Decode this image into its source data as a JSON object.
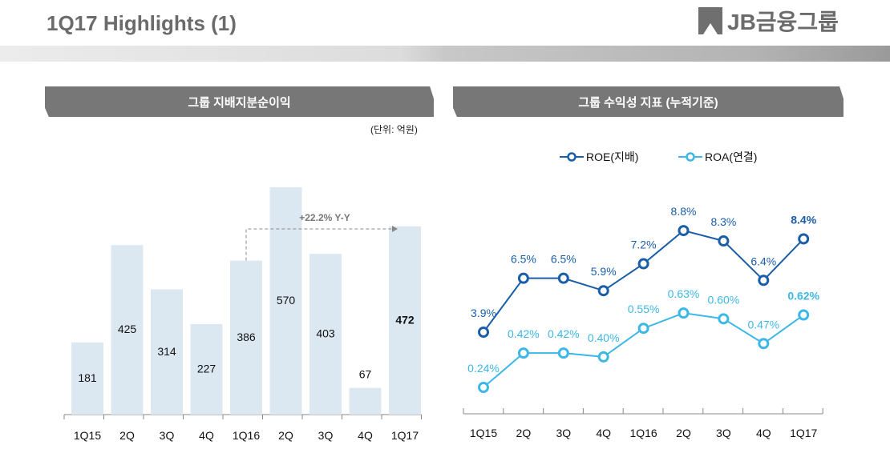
{
  "header": {
    "title": "1Q17 Highlights (1)",
    "logo_text": "JB금융그룹"
  },
  "left_panel": {
    "title": "그룹 지배지분순이익",
    "unit": "(단위: 억원)"
  },
  "right_panel": {
    "title": "그룹 수익성 지표 (누적기준)"
  },
  "chart_data": [
    {
      "type": "bar",
      "categories": [
        "1Q15",
        "2Q",
        "3Q",
        "4Q",
        "1Q16",
        "2Q",
        "3Q",
        "4Q",
        "1Q17"
      ],
      "values": [
        181,
        425,
        314,
        227,
        386,
        570,
        403,
        67,
        472
      ],
      "value_labels": [
        "181",
        "425",
        "314",
        "227",
        "386",
        "570",
        "403",
        "67",
        "472"
      ],
      "annotation": "+22.2% Y-Y",
      "ylim": [
        0,
        570
      ],
      "bar_color": "#dce8f1"
    },
    {
      "type": "line",
      "categories": [
        "1Q15",
        "2Q",
        "3Q",
        "4Q",
        "1Q16",
        "2Q",
        "3Q",
        "4Q",
        "1Q17"
      ],
      "series": [
        {
          "name": "ROE(지배)",
          "values": [
            3.9,
            6.5,
            6.5,
            5.9,
            7.2,
            8.8,
            8.3,
            6.4,
            8.4
          ],
          "labels": [
            "3.9%",
            "6.5%",
            "6.5%",
            "5.9%",
            "7.2%",
            "8.8%",
            "8.3%",
            "6.4%",
            "8.4%"
          ],
          "color": "#1a5ea8"
        },
        {
          "name": "ROA(연결)",
          "values": [
            0.24,
            0.42,
            0.42,
            0.4,
            0.55,
            0.63,
            0.6,
            0.47,
            0.62
          ],
          "labels": [
            "0.24%",
            "0.42%",
            "0.42%",
            "0.40%",
            "0.55%",
            "0.63%",
            "0.60%",
            "0.47%",
            "0.62%"
          ],
          "color": "#3db8e6"
        }
      ]
    }
  ]
}
